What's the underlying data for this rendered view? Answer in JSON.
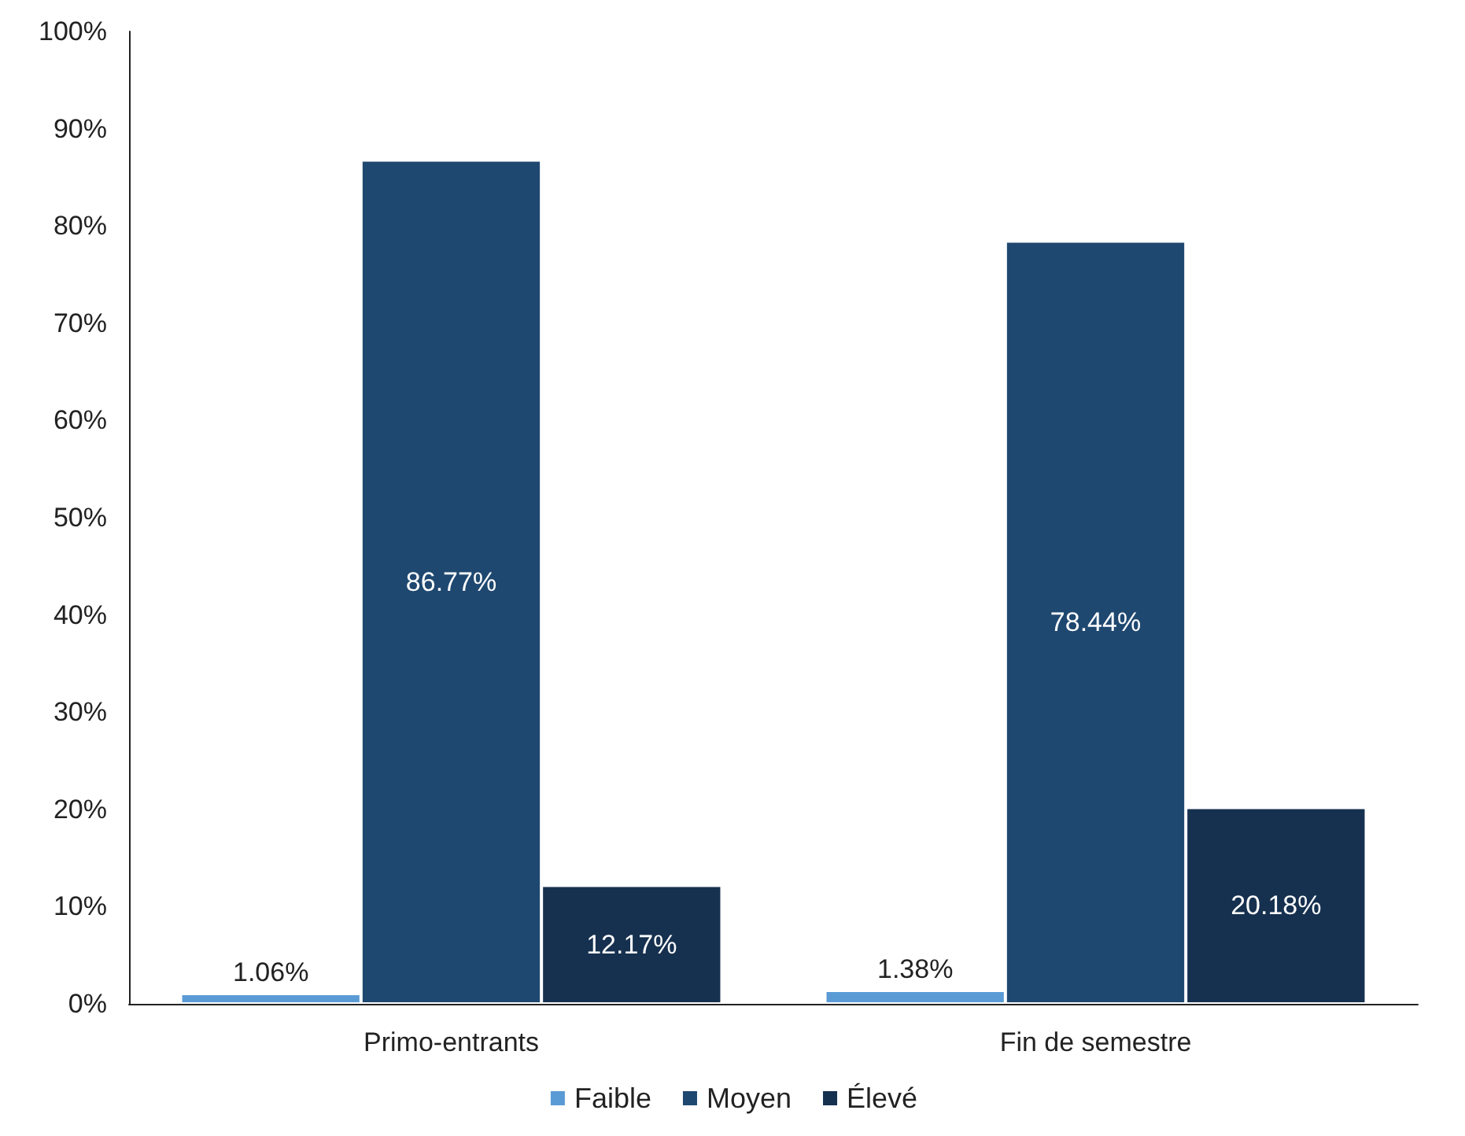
{
  "chart_data": {
    "type": "bar",
    "categories": [
      "Primo-entrants",
      "Fin de semestre"
    ],
    "series": [
      {
        "name": "Faible",
        "color": "#5b9bd5",
        "values": [
          1.06,
          1.38
        ],
        "value_labels": [
          "1.06%",
          "1.38%"
        ]
      },
      {
        "name": "Moyen",
        "color": "#1f4870",
        "values": [
          86.77,
          78.44
        ],
        "value_labels": [
          "86.77%",
          "78.44%"
        ]
      },
      {
        "name": "Élevé",
        "color": "#16304f",
        "values": [
          12.17,
          20.18
        ],
        "value_labels": [
          "12.17%",
          "20.18%"
        ]
      }
    ],
    "ylim": [
      0,
      100
    ],
    "yticks": [
      {
        "value": 0,
        "label": "0%"
      },
      {
        "value": 10,
        "label": "10%"
      },
      {
        "value": 20,
        "label": "20%"
      },
      {
        "value": 30,
        "label": "30%"
      },
      {
        "value": 40,
        "label": "40%"
      },
      {
        "value": 50,
        "label": "50%"
      },
      {
        "value": 60,
        "label": "60%"
      },
      {
        "value": 70,
        "label": "70%"
      },
      {
        "value": 80,
        "label": "80%"
      },
      {
        "value": 90,
        "label": "90%"
      },
      {
        "value": 100,
        "label": "100%"
      }
    ],
    "grid": false,
    "legend": "bottom"
  }
}
